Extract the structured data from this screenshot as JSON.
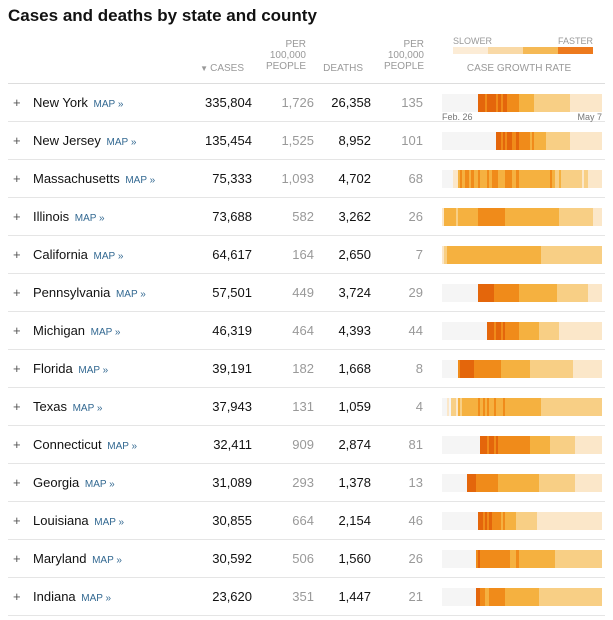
{
  "title": "Cases and deaths by state and county",
  "headers": {
    "cases_arrow": "▼",
    "cases": "CASES",
    "per_cases": [
      "PER",
      "100,000",
      "PEOPLE"
    ],
    "deaths": "DEATHS",
    "per_deaths": [
      "PER",
      "100,000",
      "PEOPLE"
    ],
    "growth": "CASE GROWTH RATE"
  },
  "legend": {
    "slower": "SLOWER",
    "faster": "FASTER",
    "colors": [
      "#fcecd6",
      "#f9d9a6",
      "#f5b955",
      "#ed7a1d"
    ]
  },
  "dates": {
    "start": "Feb. 26",
    "end": "May 7"
  },
  "map_label": "MAP »",
  "expand_icon": "+",
  "growth_palette": [
    "#f5f5f5",
    "#fbe7c9",
    "#f8cf85",
    "#f5b140",
    "#f08b1a",
    "#e4660b"
  ],
  "rows": [
    {
      "name": "New York",
      "cases": "335,804",
      "per_cases": "1,726",
      "deaths": "26,358",
      "per_deaths": "135",
      "growth": [
        0,
        0,
        0,
        0,
        0,
        0,
        0,
        0,
        0,
        0,
        0,
        0,
        0,
        0,
        0,
        0,
        5,
        5,
        5,
        4,
        5,
        5,
        5,
        5,
        4,
        5,
        4,
        5,
        5,
        4,
        4,
        4,
        4,
        4,
        3,
        3,
        3,
        3,
        3,
        3,
        3,
        2,
        2,
        2,
        2,
        2,
        2,
        2,
        2,
        2,
        2,
        2,
        2,
        2,
        2,
        2,
        2,
        1,
        1,
        1,
        1,
        1,
        1,
        1,
        1,
        1,
        1,
        1,
        1,
        1,
        1
      ]
    },
    {
      "name": "New Jersey",
      "cases": "135,454",
      "per_cases": "1,525",
      "deaths": "8,952",
      "per_deaths": "101",
      "growth": [
        0,
        0,
        0,
        0,
        0,
        0,
        0,
        0,
        0,
        0,
        0,
        0,
        0,
        0,
        0,
        0,
        0,
        0,
        0,
        0,
        0,
        0,
        0,
        0,
        5,
        5,
        4,
        5,
        4,
        5,
        5,
        4,
        4,
        5,
        4,
        4,
        4,
        4,
        4,
        3,
        4,
        3,
        3,
        3,
        3,
        3,
        2,
        2,
        2,
        2,
        2,
        2,
        2,
        2,
        2,
        2,
        2,
        1,
        1,
        1,
        1,
        1,
        1,
        1,
        1,
        1,
        1,
        1,
        1,
        1,
        1
      ]
    },
    {
      "name": "Massachusetts",
      "cases": "75,333",
      "per_cases": "1,093",
      "deaths": "4,702",
      "per_deaths": "68",
      "growth": [
        0,
        0,
        0,
        0,
        0,
        1,
        1,
        3,
        4,
        3,
        4,
        4,
        3,
        4,
        3,
        3,
        4,
        3,
        3,
        3,
        4,
        3,
        4,
        4,
        4,
        3,
        3,
        3,
        4,
        4,
        4,
        3,
        3,
        4,
        3,
        3,
        3,
        3,
        3,
        3,
        3,
        3,
        3,
        3,
        3,
        3,
        3,
        3,
        4,
        3,
        2,
        2,
        3,
        2,
        2,
        2,
        2,
        2,
        2,
        2,
        2,
        2,
        1,
        2,
        2,
        1,
        1,
        1,
        1,
        1,
        1
      ]
    },
    {
      "name": "Illinois",
      "cases": "73,688",
      "per_cases": "582",
      "deaths": "3,262",
      "per_deaths": "26",
      "growth": [
        1,
        3,
        3,
        3,
        3,
        3,
        2,
        3,
        3,
        3,
        3,
        3,
        3,
        3,
        3,
        3,
        4,
        4,
        4,
        4,
        4,
        4,
        4,
        4,
        4,
        4,
        4,
        4,
        3,
        3,
        3,
        3,
        3,
        3,
        3,
        3,
        3,
        3,
        3,
        3,
        3,
        3,
        3,
        3,
        3,
        3,
        3,
        3,
        3,
        3,
        3,
        3,
        2,
        2,
        2,
        2,
        2,
        2,
        2,
        2,
        2,
        2,
        2,
        2,
        2,
        2,
        2,
        1,
        1,
        1,
        1
      ]
    },
    {
      "name": "California",
      "cases": "64,617",
      "per_cases": "164",
      "deaths": "2,650",
      "per_deaths": "7",
      "growth": [
        1,
        2,
        3,
        3,
        3,
        3,
        3,
        3,
        3,
        3,
        3,
        3,
        3,
        3,
        3,
        3,
        3,
        3,
        3,
        3,
        3,
        3,
        3,
        3,
        3,
        3,
        3,
        3,
        3,
        3,
        3,
        3,
        3,
        3,
        3,
        3,
        3,
        3,
        3,
        3,
        3,
        3,
        3,
        3,
        2,
        2,
        2,
        2,
        2,
        2,
        2,
        2,
        2,
        2,
        2,
        2,
        2,
        2,
        2,
        2,
        2,
        2,
        2,
        2,
        2,
        2,
        2,
        2,
        2,
        2,
        2
      ]
    },
    {
      "name": "Pennsylvania",
      "cases": "57,501",
      "per_cases": "449",
      "deaths": "3,724",
      "per_deaths": "29",
      "growth": [
        0,
        0,
        0,
        0,
        0,
        0,
        0,
        0,
        0,
        0,
        0,
        0,
        0,
        0,
        0,
        0,
        5,
        5,
        5,
        5,
        5,
        5,
        5,
        4,
        4,
        4,
        4,
        4,
        4,
        4,
        4,
        4,
        4,
        4,
        3,
        3,
        3,
        3,
        3,
        3,
        3,
        3,
        3,
        3,
        3,
        3,
        3,
        3,
        3,
        3,
        3,
        2,
        2,
        2,
        2,
        2,
        2,
        2,
        2,
        2,
        2,
        2,
        2,
        2,
        2,
        1,
        1,
        1,
        1,
        1,
        1
      ]
    },
    {
      "name": "Michigan",
      "cases": "46,319",
      "per_cases": "464",
      "deaths": "4,393",
      "per_deaths": "44",
      "growth": [
        0,
        0,
        0,
        0,
        0,
        0,
        0,
        0,
        0,
        0,
        0,
        0,
        0,
        0,
        0,
        0,
        0,
        0,
        0,
        0,
        5,
        5,
        5,
        4,
        5,
        5,
        4,
        5,
        4,
        4,
        4,
        4,
        4,
        4,
        3,
        3,
        3,
        3,
        3,
        3,
        3,
        3,
        3,
        2,
        2,
        2,
        2,
        2,
        2,
        2,
        2,
        2,
        1,
        1,
        1,
        1,
        1,
        1,
        1,
        1,
        1,
        1,
        1,
        1,
        1,
        1,
        1,
        1,
        1,
        1,
        1
      ]
    },
    {
      "name": "Florida",
      "cases": "39,191",
      "per_cases": "182",
      "deaths": "1,668",
      "per_deaths": "8",
      "growth": [
        0,
        0,
        0,
        0,
        0,
        0,
        0,
        4,
        5,
        5,
        5,
        5,
        5,
        5,
        4,
        4,
        4,
        4,
        4,
        4,
        4,
        4,
        4,
        4,
        4,
        4,
        3,
        3,
        3,
        3,
        3,
        3,
        3,
        3,
        3,
        3,
        3,
        3,
        3,
        2,
        2,
        2,
        2,
        2,
        2,
        2,
        2,
        2,
        2,
        2,
        2,
        2,
        2,
        2,
        2,
        2,
        2,
        2,
        1,
        1,
        1,
        1,
        1,
        1,
        1,
        1,
        1,
        1,
        1,
        1,
        1
      ]
    },
    {
      "name": "Texas",
      "cases": "37,943",
      "per_cases": "131",
      "deaths": "1,059",
      "per_deaths": "4",
      "growth": [
        0,
        0,
        1,
        0,
        2,
        2,
        1,
        3,
        2,
        3,
        3,
        3,
        3,
        3,
        3,
        3,
        4,
        3,
        4,
        3,
        4,
        3,
        3,
        4,
        3,
        3,
        3,
        4,
        3,
        3,
        3,
        3,
        3,
        3,
        3,
        3,
        3,
        3,
        3,
        3,
        3,
        3,
        3,
        3,
        2,
        2,
        2,
        2,
        2,
        2,
        2,
        2,
        2,
        2,
        2,
        2,
        2,
        2,
        2,
        2,
        2,
        2,
        2,
        2,
        2,
        2,
        2,
        2,
        2,
        2,
        2
      ]
    },
    {
      "name": "Connecticut",
      "cases": "32,411",
      "per_cases": "909",
      "deaths": "2,874",
      "per_deaths": "81",
      "growth": [
        0,
        0,
        0,
        0,
        0,
        0,
        0,
        0,
        0,
        0,
        0,
        0,
        0,
        0,
        0,
        0,
        0,
        5,
        5,
        5,
        4,
        5,
        5,
        4,
        5,
        4,
        4,
        4,
        4,
        4,
        4,
        4,
        4,
        4,
        4,
        4,
        4,
        4,
        4,
        3,
        3,
        3,
        3,
        3,
        3,
        3,
        3,
        3,
        2,
        2,
        2,
        2,
        2,
        2,
        2,
        2,
        2,
        2,
        2,
        1,
        1,
        1,
        1,
        1,
        1,
        1,
        1,
        1,
        1,
        1,
        1
      ]
    },
    {
      "name": "Georgia",
      "cases": "31,089",
      "per_cases": "293",
      "deaths": "1,378",
      "per_deaths": "13",
      "growth": [
        0,
        0,
        0,
        0,
        0,
        0,
        0,
        0,
        0,
        0,
        0,
        5,
        5,
        5,
        5,
        4,
        4,
        4,
        4,
        4,
        4,
        4,
        4,
        4,
        4,
        3,
        3,
        3,
        3,
        3,
        3,
        3,
        3,
        3,
        3,
        3,
        3,
        3,
        3,
        3,
        3,
        3,
        3,
        2,
        2,
        2,
        2,
        2,
        2,
        2,
        2,
        2,
        2,
        2,
        2,
        2,
        2,
        2,
        2,
        1,
        1,
        1,
        1,
        1,
        1,
        1,
        1,
        1,
        1,
        1,
        1
      ]
    },
    {
      "name": "Louisiana",
      "cases": "30,855",
      "per_cases": "664",
      "deaths": "2,154",
      "per_deaths": "46",
      "growth": [
        0,
        0,
        0,
        0,
        0,
        0,
        0,
        0,
        0,
        0,
        0,
        0,
        0,
        0,
        0,
        0,
        5,
        5,
        4,
        5,
        4,
        5,
        4,
        4,
        4,
        4,
        3,
        4,
        3,
        3,
        3,
        3,
        3,
        2,
        2,
        2,
        2,
        2,
        2,
        2,
        2,
        2,
        1,
        1,
        1,
        1,
        1,
        1,
        1,
        1,
        1,
        1,
        1,
        1,
        1,
        1,
        1,
        1,
        1,
        1,
        1,
        1,
        1,
        1,
        1,
        1,
        1,
        1,
        1,
        1,
        1
      ]
    },
    {
      "name": "Maryland",
      "cases": "30,592",
      "per_cases": "506",
      "deaths": "1,560",
      "per_deaths": "26",
      "growth": [
        0,
        0,
        0,
        0,
        0,
        0,
        0,
        0,
        0,
        0,
        0,
        0,
        0,
        0,
        0,
        4,
        5,
        4,
        4,
        4,
        4,
        4,
        4,
        4,
        4,
        4,
        4,
        4,
        4,
        4,
        3,
        3,
        3,
        4,
        3,
        3,
        3,
        3,
        3,
        3,
        3,
        3,
        3,
        3,
        3,
        3,
        3,
        3,
        3,
        3,
        2,
        2,
        2,
        2,
        2,
        2,
        2,
        2,
        2,
        2,
        2,
        2,
        2,
        2,
        2,
        2,
        2,
        2,
        2,
        2,
        2
      ]
    },
    {
      "name": "Indiana",
      "cases": "23,620",
      "per_cases": "351",
      "deaths": "1,447",
      "per_deaths": "21",
      "growth": [
        0,
        0,
        0,
        0,
        0,
        0,
        0,
        0,
        0,
        0,
        0,
        0,
        0,
        0,
        0,
        5,
        5,
        4,
        4,
        3,
        3,
        4,
        4,
        4,
        4,
        4,
        4,
        4,
        3,
        3,
        3,
        3,
        3,
        3,
        3,
        3,
        3,
        3,
        3,
        3,
        3,
        3,
        3,
        2,
        2,
        2,
        2,
        2,
        2,
        2,
        2,
        2,
        2,
        2,
        2,
        2,
        2,
        2,
        2,
        2,
        2,
        2,
        2,
        2,
        2,
        2,
        2,
        2,
        2,
        2,
        2
      ]
    }
  ]
}
